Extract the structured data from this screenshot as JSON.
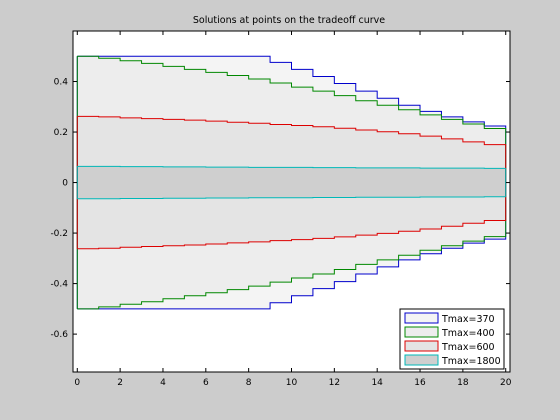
{
  "chart_data": {
    "type": "area",
    "title": "Solutions at points on the tradeoff curve",
    "xlabel": "",
    "ylabel": "",
    "xlim": [
      -0.2,
      20.2
    ],
    "ylim": [
      -0.75,
      0.6
    ],
    "xticks": [
      0,
      2,
      4,
      6,
      8,
      10,
      12,
      14,
      16,
      18,
      20
    ],
    "yticks": [
      -0.6,
      -0.4,
      -0.2,
      0,
      0.2,
      0.4
    ],
    "ytick_labels": [
      "-0.6",
      "-0.4",
      "-0.2",
      "0",
      "0.2",
      "0.4"
    ],
    "grid": false,
    "legend_position": "bottom-right",
    "plot_style": "symmetric staircase (upper bound and its negative), filled between",
    "series": [
      {
        "name": "Tmax=370",
        "color": "#0000cc",
        "fill": "#f4f4f4",
        "values": [
          0.5,
          0.5,
          0.5,
          0.5,
          0.5,
          0.5,
          0.5,
          0.5,
          0.5,
          0.476,
          0.448,
          0.42,
          0.392,
          0.362,
          0.334,
          0.306,
          0.282,
          0.26,
          0.24,
          0.224,
          0.2
        ]
      },
      {
        "name": "Tmax=400",
        "color": "#008800",
        "fill": "#ededed",
        "values": [
          0.5,
          0.492,
          0.482,
          0.472,
          0.46,
          0.448,
          0.436,
          0.424,
          0.41,
          0.394,
          0.378,
          0.362,
          0.344,
          0.324,
          0.306,
          0.288,
          0.268,
          0.25,
          0.232,
          0.214,
          0.198
        ]
      },
      {
        "name": "Tmax=600",
        "color": "#dd0000",
        "fill": "#e4e4e4",
        "values": [
          0.262,
          0.26,
          0.256,
          0.253,
          0.25,
          0.247,
          0.243,
          0.239,
          0.235,
          0.23,
          0.226,
          0.221,
          0.215,
          0.208,
          0.201,
          0.193,
          0.184,
          0.173,
          0.161,
          0.15,
          0.14
        ]
      },
      {
        "name": "Tmax=1800",
        "color": "#00b8b8",
        "fill": "#cfcfcf",
        "values": [
          0.064,
          0.064,
          0.063,
          0.063,
          0.062,
          0.062,
          0.061,
          0.061,
          0.06,
          0.06,
          0.06,
          0.059,
          0.059,
          0.058,
          0.058,
          0.058,
          0.057,
          0.057,
          0.057,
          0.056,
          0.056
        ]
      }
    ]
  }
}
